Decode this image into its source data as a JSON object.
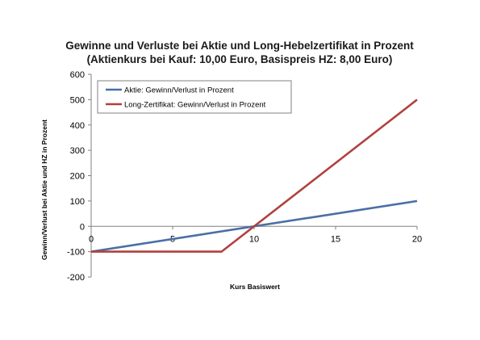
{
  "chart_data": {
    "type": "line",
    "title": "Gewinne und Verluste bei Aktie und Long-Hebelzertifikat in Prozent",
    "subtitle": "(Aktienkurs bei Kauf: 10,00 Euro, Basispreis HZ: 8,00 Euro)",
    "xlabel": "Kurs Basiswert",
    "ylabel": "Gewinn/Verlust bei Aktie und HZ in Prozent",
    "xlim": [
      0,
      20
    ],
    "ylim": [
      -200,
      600
    ],
    "x_ticks": [
      "0",
      "5",
      "10",
      "15",
      "20"
    ],
    "y_ticks": [
      "600",
      "500",
      "400",
      "300",
      "200",
      "100",
      "0",
      "-100",
      "-200"
    ],
    "legend_position": "top-left",
    "grid": false,
    "series": [
      {
        "name": "Aktie: Gewinn/Verlust in Prozent",
        "color": "#4a6fa5",
        "points": [
          [
            0,
            -100
          ],
          [
            20,
            100
          ]
        ]
      },
      {
        "name": "Long-Zertifikat: Gewinn/Verlust in Prozent",
        "color": "#b0413e",
        "points": [
          [
            0,
            -100
          ],
          [
            8,
            -100
          ],
          [
            20,
            500
          ]
        ]
      }
    ]
  }
}
